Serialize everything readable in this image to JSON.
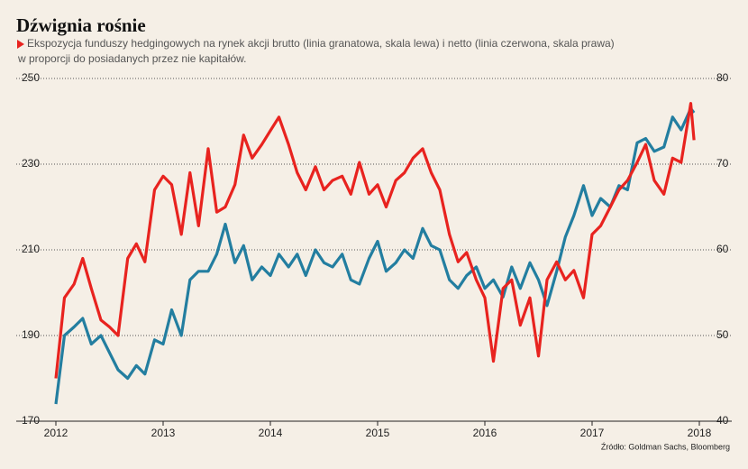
{
  "chart_data": {
    "type": "line",
    "title": "Dźwignia rośnie",
    "subtitle": [
      "Ekspozycja funduszy hedgingowych na rynek akcji brutto (linia granatowa, skala lewa) i netto (linia czerwona, skala prawa)",
      "w  proporcji do posiadanych przez nie kapitałów."
    ],
    "source": "Źródło: Goldman Sachs, Bloomberg",
    "xlim": [
      2012,
      2018
    ],
    "xticks": [
      2012,
      2013,
      2014,
      2015,
      2016,
      2017,
      2018
    ],
    "ylim": [
      170,
      250
    ],
    "yticks": [
      170,
      190,
      210,
      230,
      250
    ],
    "y2lim": [
      40,
      80
    ],
    "y2ticks": [
      40,
      50,
      60,
      70,
      80
    ],
    "grid": true,
    "x": [
      2012,
      2012.08,
      2012.17,
      2012.25,
      2012.33,
      2012.42,
      2012.5,
      2012.58,
      2012.67,
      2012.75,
      2012.83,
      2012.92,
      2013,
      2013.08,
      2013.17,
      2013.25,
      2013.33,
      2013.42,
      2013.5,
      2013.58,
      2013.67,
      2013.75,
      2013.83,
      2013.92,
      2014,
      2014.08,
      2014.17,
      2014.25,
      2014.33,
      2014.42,
      2014.5,
      2014.58,
      2014.67,
      2014.75,
      2014.83,
      2014.92,
      2015,
      2015.08,
      2015.17,
      2015.25,
      2015.33,
      2015.42,
      2015.5,
      2015.58,
      2015.67,
      2015.75,
      2015.83,
      2015.92,
      2016,
      2016.08,
      2016.17,
      2016.25,
      2016.33,
      2016.42,
      2016.5,
      2016.58,
      2016.67,
      2016.75,
      2016.83,
      2016.92,
      2017,
      2017.08,
      2017.17,
      2017.25,
      2017.33,
      2017.42,
      2017.5,
      2017.58,
      2017.67,
      2017.75,
      2017.83,
      2017.92,
      2017.95
    ],
    "series": [
      {
        "name": "brutto",
        "color": "#237ea0",
        "axis": "y",
        "values": [
          174,
          190,
          192,
          194,
          188,
          190,
          186,
          182,
          180,
          183,
          181,
          189,
          188,
          196,
          190,
          203,
          205,
          205,
          209,
          216,
          207,
          211,
          203,
          206,
          204,
          209,
          206,
          209,
          204,
          210,
          207,
          206,
          209,
          203,
          202,
          208,
          212,
          205,
          207,
          210,
          208,
          215,
          211,
          210,
          203,
          201,
          204,
          206,
          201,
          203,
          199,
          206,
          201,
          207,
          203,
          197,
          205,
          213,
          218,
          225,
          218,
          222,
          220,
          225,
          224,
          235,
          236,
          233,
          234,
          241,
          238,
          243,
          242
        ]
      },
      {
        "name": "netto",
        "color": "#e8231f",
        "axis": "y2",
        "values": [
          45,
          54.4,
          56,
          59,
          55.5,
          51.8,
          51,
          50,
          59,
          60.7,
          58.6,
          67,
          68.6,
          67.6,
          61.8,
          69,
          62.8,
          71.8,
          64.4,
          65,
          67.6,
          73.4,
          70.7,
          72.3,
          73.9,
          75.5,
          72.3,
          69,
          67,
          69.7,
          67,
          68.1,
          68.6,
          66.5,
          70.2,
          66.5,
          67.6,
          65,
          68.1,
          69,
          70.7,
          71.8,
          69,
          67,
          61.8,
          58.6,
          59.7,
          56.5,
          54.4,
          47,
          55.5,
          56.5,
          51.2,
          54.4,
          47.6,
          56.5,
          58.6,
          56.5,
          57.6,
          54.4,
          61.8,
          62.8,
          65,
          67,
          68.1,
          70.2,
          72.3,
          68.1,
          66.5,
          70.7,
          70.2,
          77.1,
          72.8
        ]
      }
    ]
  }
}
